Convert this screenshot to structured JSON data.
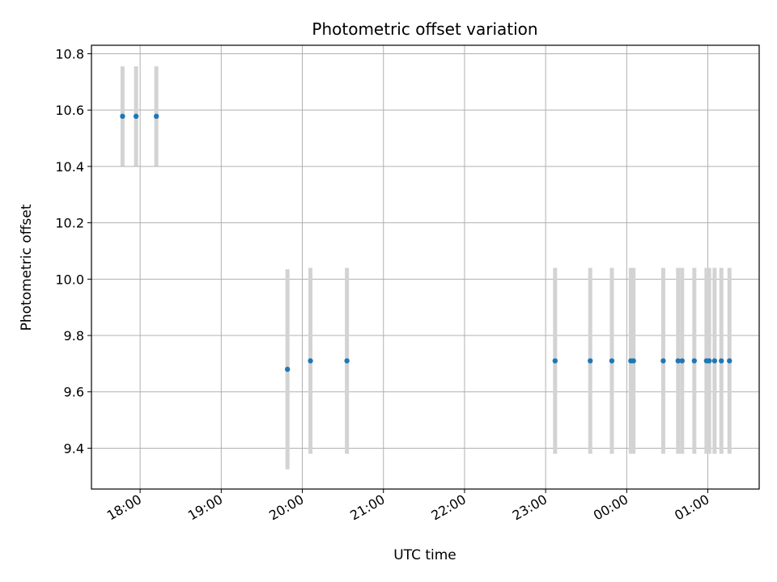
{
  "chart_data": {
    "type": "scatter",
    "title": "Photometric offset variation",
    "xlabel": "UTC time",
    "ylabel": "Photometric offset",
    "x_ticks": [
      "18:00",
      "19:00",
      "20:00",
      "21:00",
      "22:00",
      "23:00",
      "00:00",
      "01:00"
    ],
    "y_ticks": [
      "9.4",
      "9.6",
      "9.8",
      "10.0",
      "10.2",
      "10.4",
      "10.6",
      "10.8"
    ],
    "xlim": [
      "17:24",
      "01:38"
    ],
    "ylim": [
      9.255,
      10.83
    ],
    "grid": true,
    "colors": {
      "points": "#1f77b4",
      "errorbars": "#d3d3d3",
      "grid": "#b0b0b0"
    },
    "series": [
      {
        "points": [
          {
            "x": "17:47",
            "y": 10.578,
            "err": 0.177
          },
          {
            "x": "17:57",
            "y": 10.578,
            "err": 0.177
          },
          {
            "x": "18:12",
            "y": 10.578,
            "err": 0.177
          },
          {
            "x": "19:49",
            "y": 9.68,
            "err": 0.355
          },
          {
            "x": "20:06",
            "y": 9.71,
            "err": 0.33
          },
          {
            "x": "20:33",
            "y": 9.71,
            "err": 0.33
          },
          {
            "x": "23:07",
            "y": 9.71,
            "err": 0.33
          },
          {
            "x": "23:33",
            "y": 9.71,
            "err": 0.33
          },
          {
            "x": "23:49",
            "y": 9.71,
            "err": 0.33
          },
          {
            "x": "00:03",
            "y": 9.71,
            "err": 0.33
          },
          {
            "x": "00:05",
            "y": 9.71,
            "err": 0.33
          },
          {
            "x": "00:27",
            "y": 9.71,
            "err": 0.33
          },
          {
            "x": "00:38",
            "y": 9.71,
            "err": 0.33
          },
          {
            "x": "00:41",
            "y": 9.71,
            "err": 0.33
          },
          {
            "x": "00:50",
            "y": 9.71,
            "err": 0.33
          },
          {
            "x": "00:59",
            "y": 9.71,
            "err": 0.33
          },
          {
            "x": "01:01",
            "y": 9.71,
            "err": 0.33
          },
          {
            "x": "01:05",
            "y": 9.71,
            "err": 0.33
          },
          {
            "x": "01:10",
            "y": 9.71,
            "err": 0.33
          },
          {
            "x": "01:16",
            "y": 9.71,
            "err": 0.33
          }
        ]
      }
    ]
  }
}
